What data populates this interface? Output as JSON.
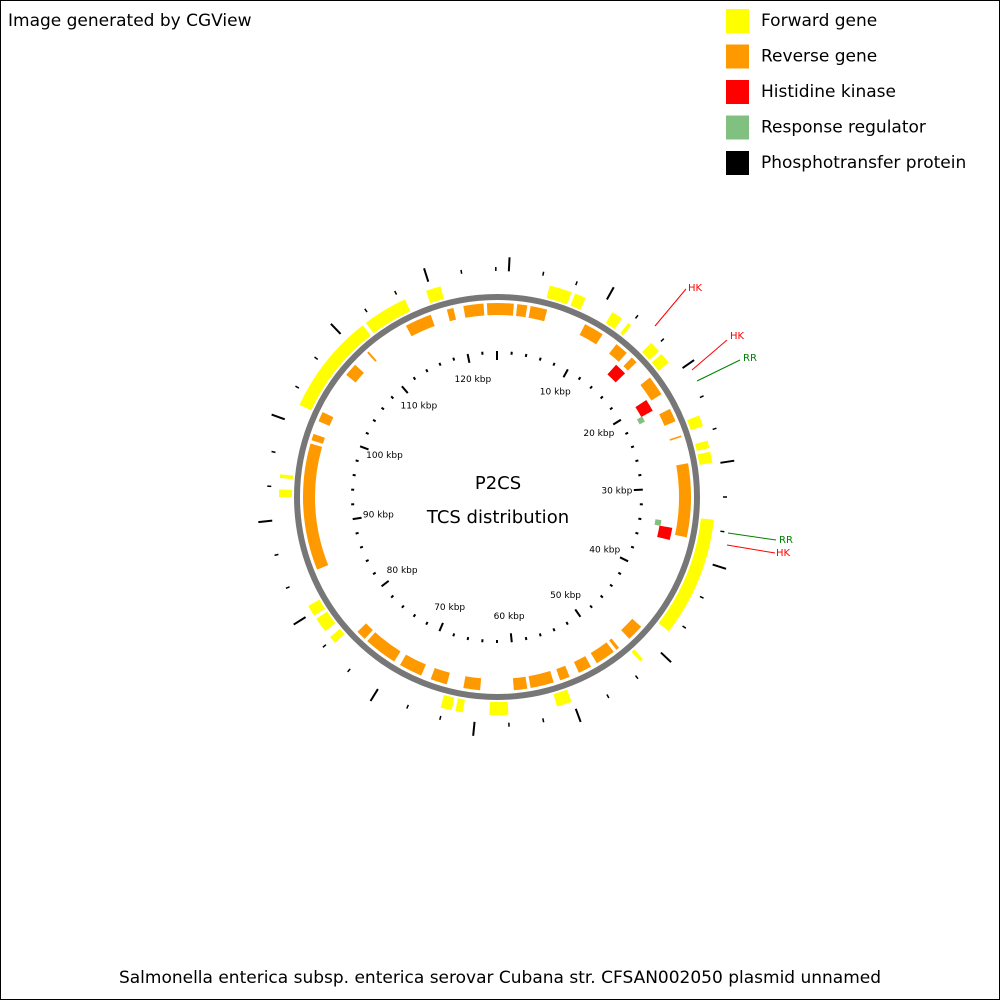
{
  "header": "Image generated by CGView",
  "legend": [
    {
      "label": "Forward gene",
      "color": "#ffff00"
    },
    {
      "label": "Reverse gene",
      "color": "#ff9900"
    },
    {
      "label": "Histidine kinase",
      "color": "#ff0000"
    },
    {
      "label": "Response regulator",
      "color": "#80c080"
    },
    {
      "label": "Phosphotransfer protein",
      "color": "#000000"
    }
  ],
  "center": {
    "title": "P2CS",
    "subtitle": "TCS distribution"
  },
  "kbp_labels": [
    "10 kbp",
    "20 kbp",
    "30 kbp",
    "40 kbp",
    "50 kbp",
    "60 kbp",
    "70 kbp",
    "80 kbp",
    "90 kbp",
    "100 kbp",
    "110 kbp",
    "120 kbp"
  ],
  "callouts": [
    {
      "label": "HK",
      "color": "#ff0000"
    },
    {
      "label": "HK",
      "color": "#ff0000"
    },
    {
      "label": "RR",
      "color": "#008000"
    },
    {
      "label": "RR",
      "color": "#008000"
    },
    {
      "label": "HK",
      "color": "#ff0000"
    }
  ],
  "footer": "Salmonella enterica subsp. enterica serovar Cubana str. CFSAN002050 plasmid unnamed"
}
